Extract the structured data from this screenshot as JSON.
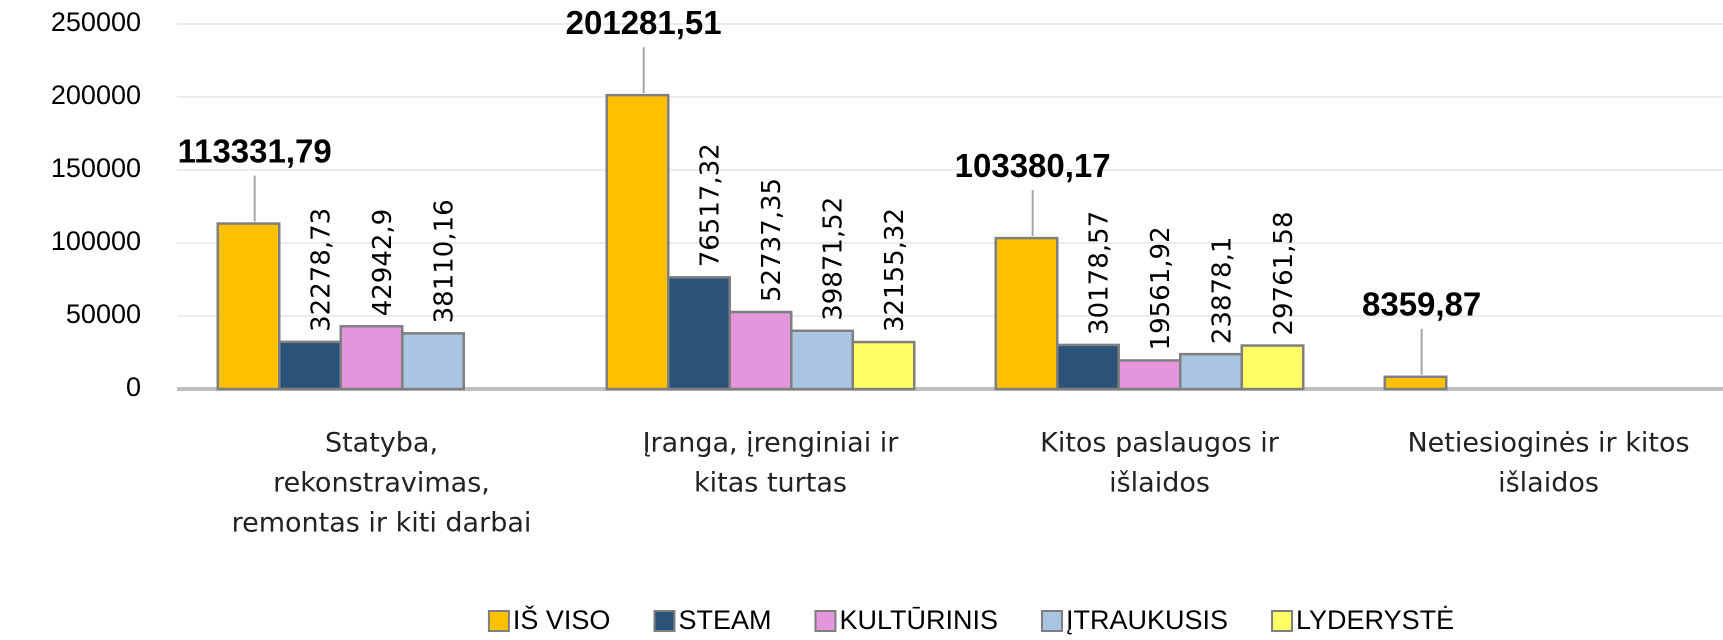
{
  "chart_data": {
    "type": "bar",
    "categories": [
      [
        "Statyba,",
        "rekonstravimas,",
        "remontas ir kiti darbai"
      ],
      [
        "Įranga, įrenginiai  ir",
        "kitas turtas"
      ],
      [
        "Kitos paslaugos ir",
        "išlaidos"
      ],
      [
        "Netiesioginės  ir kitos",
        "išlaidos"
      ]
    ],
    "series": [
      {
        "name": "IŠ VISO",
        "color": "#ffc000",
        "values": [
          113331.79,
          201281.51,
          103380.17,
          8359.87
        ],
        "value_labels": [
          "113331,79",
          "201281,51",
          "103380,17",
          "8359,87"
        ]
      },
      {
        "name": "STEAM",
        "color": "#2b5278",
        "values": [
          32278.73,
          76517.32,
          30178.57,
          null
        ],
        "value_labels": [
          "32278,73",
          "76517,32",
          "30178,57",
          null
        ]
      },
      {
        "name": "KULTŪRINIS",
        "color": "#e396dc",
        "values": [
          42942.9,
          52737.35,
          19561.92,
          null
        ],
        "value_labels": [
          "42942,9",
          "52737,35",
          "19561,92",
          null
        ]
      },
      {
        "name": "ĮTRAUKUSIS",
        "color": "#a9c5e1",
        "values": [
          38110.16,
          39871.52,
          23878.1,
          null
        ],
        "value_labels": [
          "38110,16",
          "39871,52",
          "23878,1",
          null
        ]
      },
      {
        "name": "LYDERYSTĖ",
        "color": "#ffff66",
        "values": [
          null,
          32155.32,
          29761.58,
          null
        ],
        "value_labels": [
          null,
          "32155,32",
          "29761,58",
          null
        ]
      }
    ],
    "ylim": [
      0,
      250000
    ],
    "yticks": [
      0,
      50000,
      100000,
      150000,
      200000,
      250000
    ],
    "grid": true,
    "legend": "bottom"
  }
}
